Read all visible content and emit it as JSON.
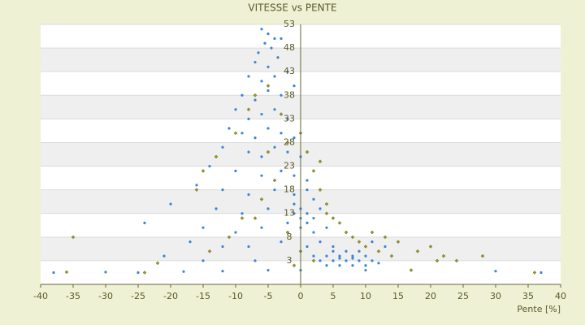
{
  "chart_data": {
    "type": "scatter",
    "title": "VITESSE vs PENTE",
    "x_label": "Pente [%]",
    "xlim": [
      -40,
      40
    ],
    "xticks": [
      -40,
      -35,
      -30,
      -25,
      -20,
      -15,
      -10,
      -5,
      0,
      5,
      10,
      15,
      20,
      25,
      30,
      35,
      40
    ],
    "ylim": [
      -2,
      53
    ],
    "yticks": [
      3,
      8,
      13,
      18,
      23,
      28,
      33,
      38,
      43,
      48,
      53
    ],
    "grid": true,
    "series": [
      {
        "color": "#3a86d6",
        "x": [
          -6,
          -5,
          -4,
          -5.5,
          -6.5,
          -4.5,
          -3,
          -7,
          -5,
          -3.5,
          -8,
          -6,
          -4,
          -2,
          -9,
          -7,
          -5,
          -3,
          -1,
          -10,
          -8,
          -6,
          -4,
          -2,
          -11,
          -9,
          -7,
          -5,
          -3,
          -1,
          -12,
          -8,
          -6,
          -4,
          -2,
          0,
          -14,
          -10,
          -6,
          -3,
          -1,
          1,
          -16,
          -12,
          -8,
          -4,
          -1,
          1,
          2,
          -20,
          -13,
          -9,
          -5,
          -1,
          0,
          1,
          3,
          -24,
          -15,
          -10,
          -6,
          -2,
          0,
          2,
          4,
          -17,
          -12,
          -8,
          -3,
          1,
          3,
          5,
          -21,
          -15,
          -7,
          2,
          4,
          6,
          8,
          10,
          3,
          5,
          7,
          9,
          11,
          4,
          6,
          8,
          10,
          12,
          5,
          7,
          9,
          6,
          8,
          -38,
          -30,
          -25,
          -18,
          -12,
          -5,
          0,
          10,
          30,
          37,
          11,
          13,
          0,
          1,
          2,
          -1
        ],
        "values": [
          52,
          51,
          50,
          49,
          47,
          48,
          50,
          45,
          44,
          46,
          42,
          41,
          42,
          43,
          38,
          37,
          39,
          38,
          40,
          35,
          33,
          34,
          35,
          33,
          31,
          30,
          29,
          31,
          30,
          29,
          27,
          26,
          25,
          27,
          26,
          25,
          23,
          22,
          21,
          22,
          21,
          20,
          19,
          18,
          17,
          18,
          17,
          18,
          16,
          15,
          14,
          13,
          14,
          15,
          14,
          13,
          14,
          11,
          10,
          9,
          10,
          11,
          10,
          9,
          10,
          7,
          6,
          6,
          7,
          6,
          7,
          6,
          4,
          3,
          3,
          4,
          4,
          4,
          4,
          4,
          3,
          3,
          3,
          3,
          3,
          2,
          2,
          2,
          2,
          2.5,
          5,
          5,
          5,
          3.5,
          3.5,
          0.5,
          0.6,
          0.5,
          0.7,
          0.8,
          1,
          1,
          1,
          0.8,
          0.5,
          7,
          6,
          12,
          11,
          12,
          13
        ]
      },
      {
        "color": "#9a9a20",
        "x": [
          -36,
          -35,
          -22,
          -16,
          -15,
          -13,
          -10,
          -8,
          -7,
          -5,
          -3,
          -2,
          0,
          1,
          2,
          3,
          4,
          5,
          6,
          7,
          8,
          9,
          10,
          12,
          14,
          15,
          18,
          20,
          22,
          24,
          17,
          -4,
          -6,
          -9,
          -11,
          -14,
          -2,
          0,
          2,
          -1,
          -24,
          36,
          28,
          21,
          13,
          11,
          4,
          3,
          -5,
          -7
        ],
        "values": [
          0.6,
          8,
          2.5,
          18,
          22,
          25,
          30,
          35,
          38,
          40,
          34,
          28,
          30,
          26,
          22,
          18,
          15,
          12,
          11,
          9,
          8,
          7,
          6,
          5,
          4,
          7,
          5,
          6,
          4,
          3,
          1,
          20,
          16,
          12,
          8,
          5,
          9,
          5,
          3,
          2,
          0.5,
          0.5,
          4,
          3,
          8,
          9,
          13,
          24,
          26,
          12
        ]
      }
    ]
  }
}
